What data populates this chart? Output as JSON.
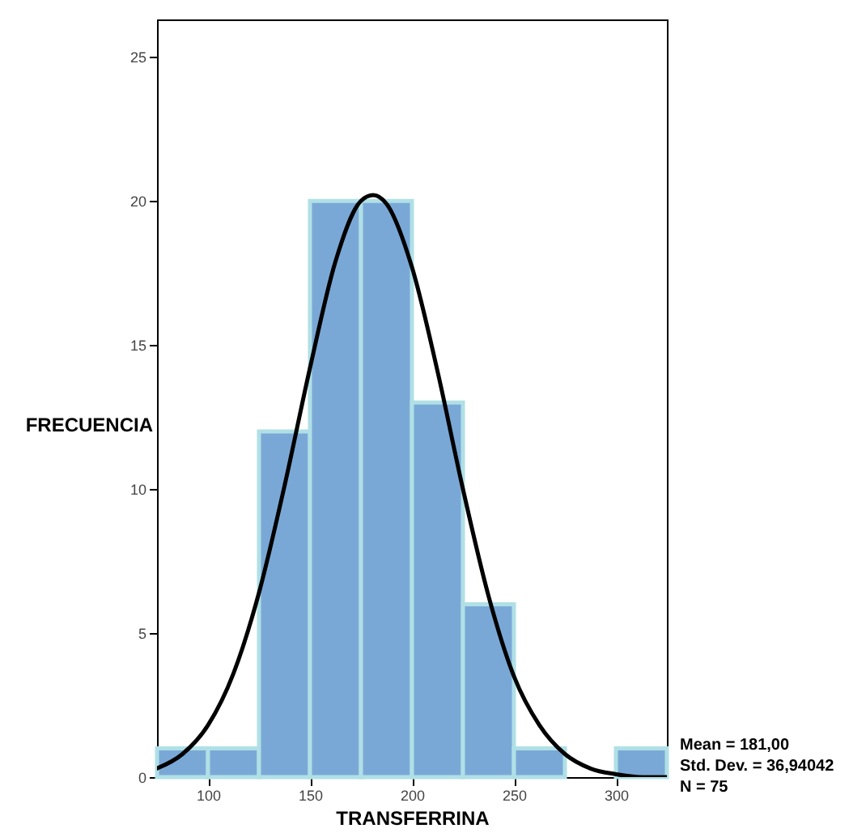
{
  "chart_data": {
    "type": "histogram",
    "xlabel": "TRANSFERRINA",
    "ylabel": "FRECUENCIA",
    "bins": [
      75,
      100,
      125,
      150,
      175,
      200,
      225,
      250,
      275,
      300,
      325
    ],
    "values": [
      1,
      1,
      12,
      20,
      20,
      13,
      6,
      1,
      0,
      1
    ],
    "color": "#7aa8d6",
    "series": [
      {
        "type": "line",
        "color": "#000000",
        "x": [
          75,
          87.5,
          100,
          112.5,
          125,
          137.5,
          150,
          162.5,
          175,
          181,
          187.5,
          200,
          212.5,
          225,
          237.5,
          250,
          262.5,
          275,
          287.5,
          300,
          312.5,
          325
        ],
        "values": [
          0.3,
          0.8,
          1.8,
          3.6,
          6.4,
          10.1,
          14.2,
          17.9,
          20.0,
          20.2,
          19.9,
          17.7,
          14.1,
          10.0,
          6.3,
          3.5,
          1.8,
          0.8,
          0.3,
          0.1,
          0.0,
          0.0
        ]
      }
    ],
    "xlim": [
      75,
      325
    ],
    "xticks": [
      100,
      150,
      200,
      250,
      300
    ],
    "ylim": [
      0,
      26.3
    ],
    "yticks": [
      0,
      5,
      10,
      15,
      20,
      25
    ],
    "grid": false,
    "annotations": [
      "Mean = 181,00",
      "Std. Dev. = 36,94042",
      "N = 75"
    ]
  }
}
